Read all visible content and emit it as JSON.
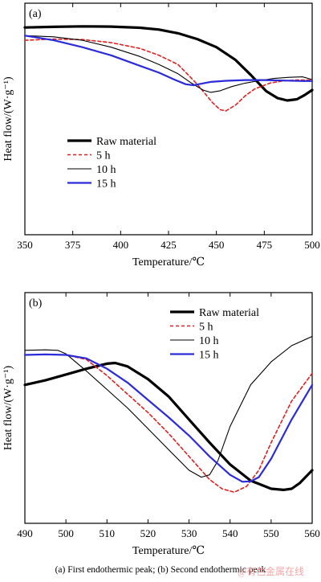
{
  "caption": "(a) First endothermic peak; (b) Second endothermic peak",
  "watermark": "@有色金属在线",
  "chart_data": [
    {
      "type": "line",
      "panel_label": "(a)",
      "xlabel": "Temperature/℃",
      "ylabel": "Heat flow/(W·g⁻¹)",
      "xlim": [
        350,
        500
      ],
      "xticks": [
        350,
        375,
        400,
        425,
        450,
        475,
        500
      ],
      "ylim": [
        0,
        1
      ],
      "y_ticks_shown": false,
      "grid": false,
      "legend_position": "lower-left",
      "series": [
        {
          "name": "Raw material",
          "color": "#000000",
          "width": 3.2,
          "dash": "",
          "x": [
            350,
            365,
            380,
            395,
            410,
            420,
            430,
            440,
            450,
            460,
            468,
            476,
            482,
            487,
            492,
            496,
            500
          ],
          "y": [
            0.895,
            0.898,
            0.9,
            0.899,
            0.894,
            0.886,
            0.87,
            0.845,
            0.81,
            0.755,
            0.69,
            0.62,
            0.59,
            0.58,
            0.585,
            0.603,
            0.625
          ]
        },
        {
          "name": "5 h",
          "color": "#e02020",
          "width": 1.6,
          "dash": "4,3",
          "x": [
            350,
            365,
            380,
            395,
            410,
            420,
            430,
            440,
            448,
            452,
            455,
            460,
            465,
            470,
            478,
            485,
            492,
            500
          ],
          "y": [
            0.84,
            0.845,
            0.843,
            0.83,
            0.805,
            0.775,
            0.735,
            0.65,
            0.57,
            0.54,
            0.535,
            0.56,
            0.6,
            0.63,
            0.655,
            0.665,
            0.668,
            0.668
          ]
        },
        {
          "name": "10 h",
          "color": "#000000",
          "width": 1.1,
          "dash": "",
          "x": [
            350,
            365,
            380,
            395,
            410,
            420,
            430,
            437,
            443,
            447,
            452,
            458,
            465,
            472,
            480,
            488,
            495,
            500
          ],
          "y": [
            0.86,
            0.855,
            0.84,
            0.81,
            0.77,
            0.735,
            0.695,
            0.655,
            0.625,
            0.615,
            0.622,
            0.64,
            0.655,
            0.665,
            0.675,
            0.68,
            0.682,
            0.67
          ]
        },
        {
          "name": "15 h",
          "color": "#2b2bd9",
          "width": 2.2,
          "dash": "",
          "x": [
            350,
            365,
            380,
            395,
            410,
            420,
            428,
            434,
            438,
            442,
            447,
            455,
            465,
            475,
            485,
            495,
            500
          ],
          "y": [
            0.86,
            0.84,
            0.81,
            0.775,
            0.73,
            0.7,
            0.67,
            0.65,
            0.646,
            0.652,
            0.66,
            0.665,
            0.668,
            0.668,
            0.666,
            0.664,
            0.664
          ]
        }
      ]
    },
    {
      "type": "line",
      "panel_label": "(b)",
      "xlabel": "Temperature/℃",
      "ylabel": "Heat flow/(W·g⁻¹)",
      "xlim": [
        490,
        560
      ],
      "xticks": [
        490,
        500,
        510,
        520,
        530,
        540,
        550,
        560
      ],
      "ylim": [
        0,
        1
      ],
      "y_ticks_shown": false,
      "grid": false,
      "legend_position": "top-right",
      "series": [
        {
          "name": "Raw material",
          "color": "#000000",
          "width": 3.2,
          "dash": "",
          "x": [
            490,
            495,
            500,
            505,
            510,
            512,
            515,
            520,
            525,
            530,
            535,
            540,
            545,
            550,
            553,
            555,
            557,
            560
          ],
          "y": [
            0.6,
            0.62,
            0.645,
            0.67,
            0.692,
            0.695,
            0.68,
            0.625,
            0.55,
            0.45,
            0.35,
            0.255,
            0.185,
            0.15,
            0.145,
            0.15,
            0.175,
            0.23
          ]
        },
        {
          "name": "5 h",
          "color": "#e02020",
          "width": 1.6,
          "dash": "4,3",
          "x": [
            490,
            495,
            500,
            505,
            510,
            515,
            520,
            525,
            530,
            535,
            538,
            541,
            544,
            547,
            550,
            555,
            560
          ],
          "y": [
            0.73,
            0.732,
            0.73,
            0.71,
            0.64,
            0.56,
            0.48,
            0.39,
            0.29,
            0.19,
            0.15,
            0.135,
            0.16,
            0.23,
            0.35,
            0.53,
            0.65
          ]
        },
        {
          "name": "10 h",
          "color": "#000000",
          "width": 1.1,
          "dash": "",
          "x": [
            490,
            495,
            498,
            500,
            505,
            510,
            515,
            520,
            525,
            530,
            533,
            535,
            537,
            540,
            545,
            550,
            555,
            560
          ],
          "y": [
            0.75,
            0.752,
            0.75,
            0.735,
            0.66,
            0.58,
            0.5,
            0.41,
            0.32,
            0.23,
            0.2,
            0.21,
            0.27,
            0.42,
            0.6,
            0.7,
            0.77,
            0.81
          ]
        },
        {
          "name": "15 h",
          "color": "#2b2bd9",
          "width": 2.2,
          "dash": "",
          "x": [
            490,
            495,
            500,
            505,
            510,
            515,
            520,
            525,
            530,
            535,
            540,
            543,
            545,
            547,
            550,
            555,
            560
          ],
          "y": [
            0.73,
            0.732,
            0.73,
            0.715,
            0.67,
            0.61,
            0.535,
            0.46,
            0.38,
            0.29,
            0.21,
            0.18,
            0.182,
            0.2,
            0.28,
            0.45,
            0.6
          ]
        }
      ]
    }
  ]
}
